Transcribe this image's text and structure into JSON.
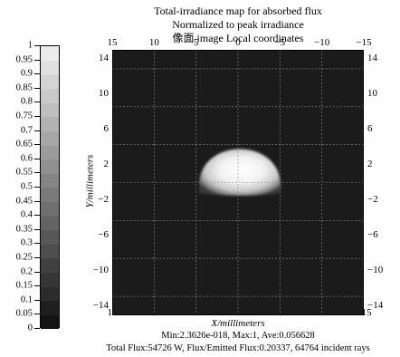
{
  "header": {
    "title_line1": "Total-irradiance map for absorbed flux",
    "title_line2": "Normalized to peak irradiance",
    "title_line3": "像面 image   Local coordinates"
  },
  "axes": {
    "x_label": "X/millimeters",
    "y_label": "Y/millimeters",
    "x_ticks": [
      "15",
      "10",
      "5",
      "0",
      "−5",
      "−10",
      "−15"
    ],
    "y_ticks": [
      "14",
      "10",
      "6",
      "2",
      "−2",
      "−6",
      "−10",
      "−14"
    ]
  },
  "colorbar": {
    "ticks": [
      "1",
      "0.95",
      "0.9",
      "0.85",
      "0.8",
      "0.75",
      "0.7",
      "0.65",
      "0.6",
      "0.55",
      "0.5",
      "0.45",
      "0.4",
      "0.35",
      "0.3",
      "0.25",
      "0.2",
      "0.15",
      "0.1",
      "0.05",
      "0"
    ]
  },
  "footer": {
    "stats": "Min:2.3626e-018, Max:1, Ave:0.056628",
    "flux": "Total Flux:54726 W, Flux/Emitted Flux:0.20337, 64764 incident rays"
  },
  "colors": {
    "background": "#1b1b1b",
    "grid": "#8a8a8a"
  }
}
